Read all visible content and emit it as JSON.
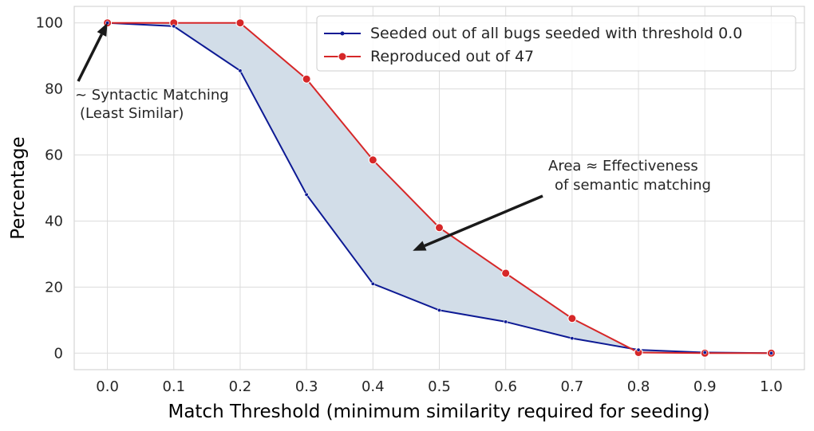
{
  "chart_data": {
    "type": "line",
    "x": [
      0.0,
      0.1,
      0.2,
      0.3,
      0.4,
      0.5,
      0.6,
      0.7,
      0.8,
      0.9,
      1.0
    ],
    "x_tick_labels": [
      "0.0",
      "0.1",
      "0.2",
      "0.3",
      "0.4",
      "0.5",
      "0.6",
      "0.7",
      "0.8",
      "0.9",
      "1.0"
    ],
    "y_ticks": [
      0,
      20,
      40,
      60,
      80,
      100
    ],
    "y_tick_labels": [
      "0",
      "20",
      "40",
      "60",
      "80",
      "100"
    ],
    "xlabel": "Match Threshold (minimum similarity required for seeding)",
    "ylabel": "Percentage",
    "xlim": [
      -0.05,
      1.05
    ],
    "ylim": [
      -5,
      105
    ],
    "grid": true,
    "legend_position": "top-right",
    "series": [
      {
        "name": "Seeded out of all bugs seeded with threshold 0.0",
        "values": [
          100,
          99,
          85.5,
          48,
          21,
          13,
          9.5,
          4.5,
          1,
          0.2,
          0
        ],
        "color": "#0d1a94",
        "marker": "small-dot"
      },
      {
        "name": "Reproduced out of 47",
        "values": [
          100,
          100,
          100,
          83,
          58.5,
          38,
          24.2,
          10.5,
          0.2,
          0,
          0
        ],
        "color": "#d62728",
        "marker": "circle"
      }
    ],
    "fill_between_color": "#d2dde8",
    "annotations": [
      {
        "lines": [
          "~ Syntactic Matching",
          "(Least Similar)"
        ],
        "arrow_target": [
          0.0,
          100
        ]
      },
      {
        "lines": [
          "Area ≈ Effectiveness",
          "of semantic matching"
        ],
        "arrow_target": [
          0.46,
          31
        ]
      }
    ]
  }
}
